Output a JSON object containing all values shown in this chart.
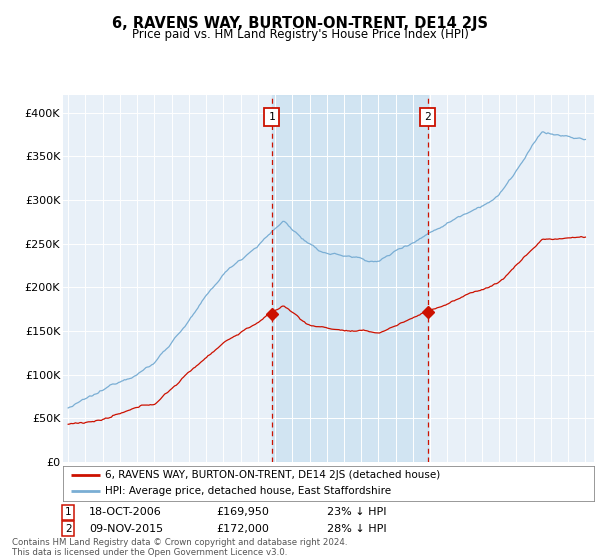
{
  "title": "6, RAVENS WAY, BURTON-ON-TRENT, DE14 2JS",
  "subtitle": "Price paid vs. HM Land Registry's House Price Index (HPI)",
  "legend_line1": "6, RAVENS WAY, BURTON-ON-TRENT, DE14 2JS (detached house)",
  "legend_line2": "HPI: Average price, detached house, East Staffordshire",
  "annotation1": {
    "label": "1",
    "date": "18-OCT-2006",
    "price": "£169,950",
    "pct": "23% ↓ HPI",
    "x_year": 2006.8
  },
  "annotation2": {
    "label": "2",
    "date": "09-NOV-2015",
    "price": "£172,000",
    "pct": "28% ↓ HPI",
    "x_year": 2015.85
  },
  "footer1": "Contains HM Land Registry data © Crown copyright and database right 2024.",
  "footer2": "This data is licensed under the Open Government Licence v3.0.",
  "hpi_color": "#7aaed4",
  "price_color": "#cc1100",
  "annotation_box_color": "#cc1100",
  "shade_color": "#c8dff0",
  "background_color": "#e8f0f8",
  "ylim": [
    0,
    420000
  ],
  "yticks": [
    0,
    50000,
    100000,
    150000,
    200000,
    250000,
    300000,
    350000,
    400000
  ],
  "xlim_start": 1994.7,
  "xlim_end": 2025.5
}
